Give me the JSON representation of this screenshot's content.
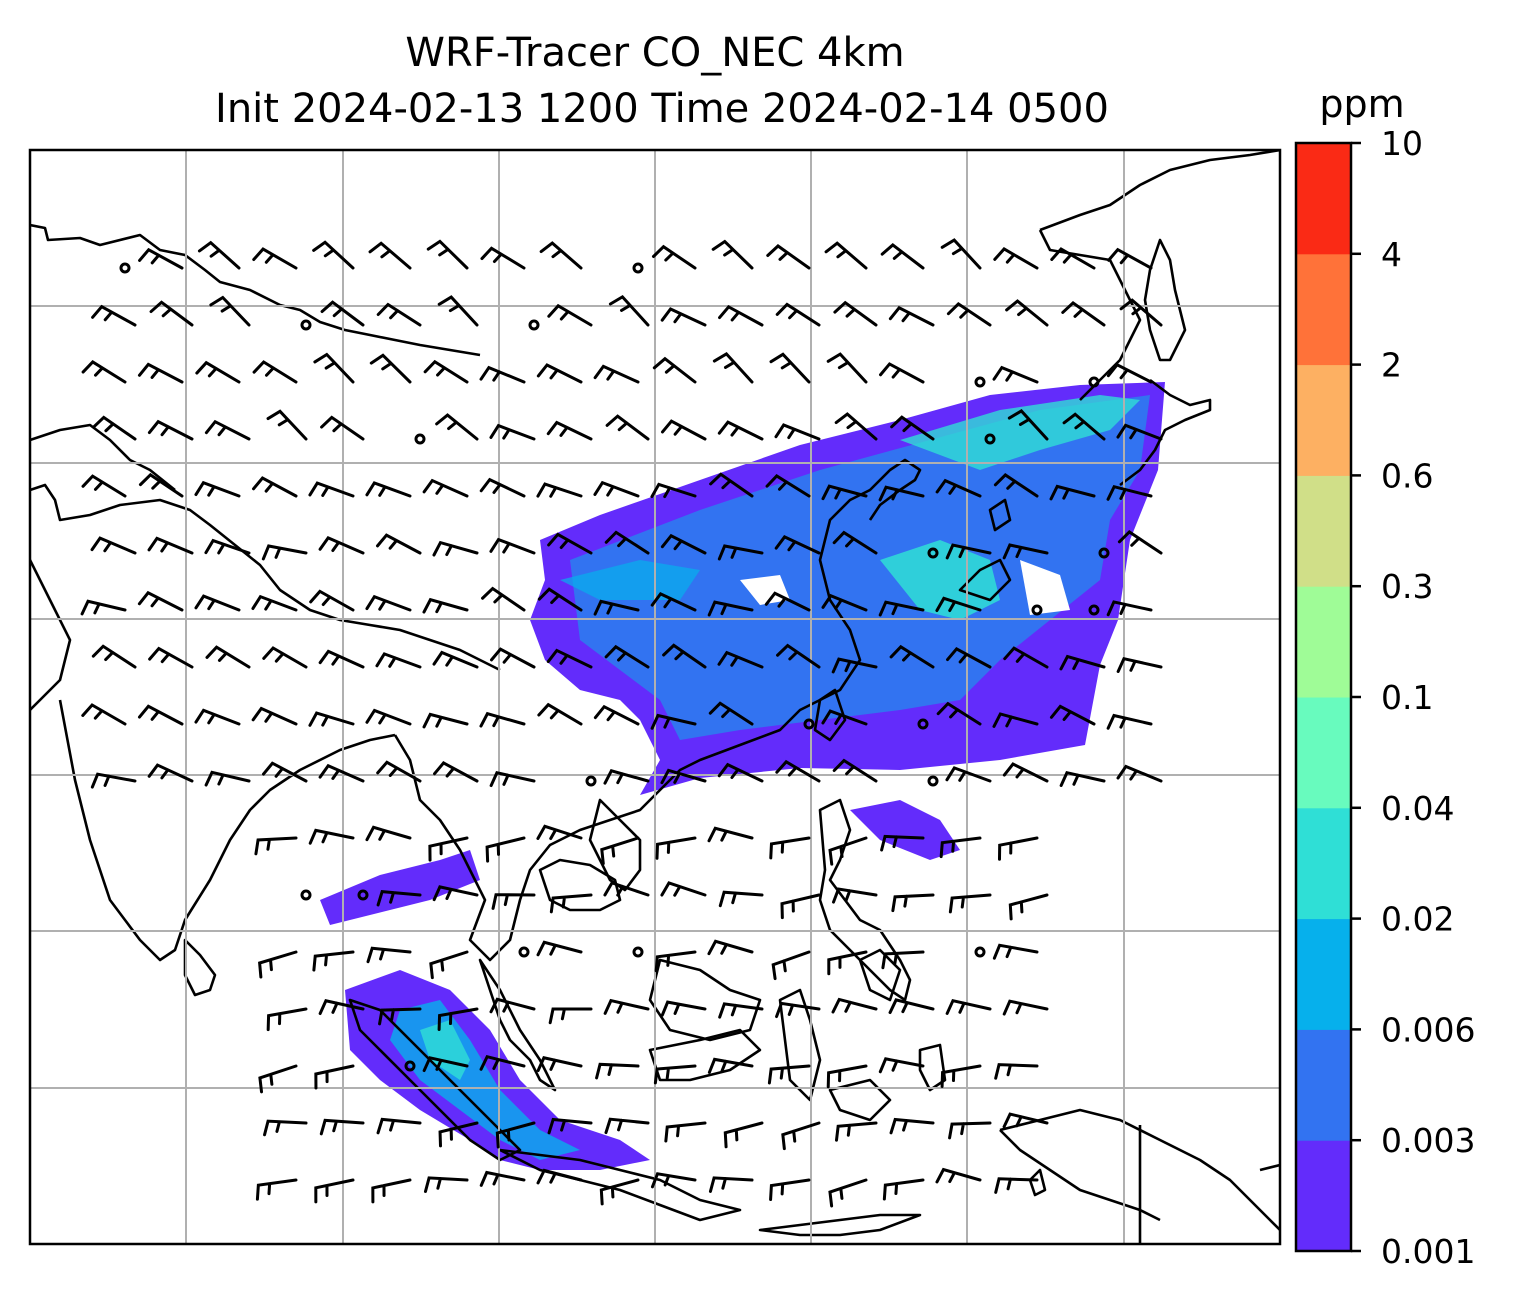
{
  "title": {
    "line1": "WRF-Tracer CO_NEC 4km",
    "line2": "Init 2024-02-13 1200 Time 2024-02-14 0500"
  },
  "colorbar": {
    "unit": "ppm",
    "levels": [
      "0.001",
      "0.003",
      "0.006",
      "0.02",
      "0.04",
      "0.1",
      "0.3",
      "0.6",
      "2",
      "4",
      "10"
    ],
    "colors": [
      "#632cfb",
      "#3273f1",
      "#06b0ec",
      "#2fdfd6",
      "#68fbbe",
      "#9ffc97",
      "#d0df88",
      "#fdb062",
      "#ff7239",
      "#fa2a15"
    ]
  },
  "chart_data": {
    "type": "heatmap",
    "title": "WRF-Tracer CO_NEC 4km / Init 2024-02-13 1200 Time 2024-02-14 0500",
    "variable": "CO_NEC tracer concentration",
    "unit": "ppm",
    "color_levels": [
      0.001,
      0.003,
      0.006,
      0.02,
      0.04,
      0.1,
      0.3,
      0.6,
      2,
      4,
      10
    ],
    "overlays": [
      "coastlines",
      "country borders",
      "wind barbs",
      "lat/lon gridlines"
    ],
    "gridlines": true
  },
  "colors": {
    "frame": "#000000",
    "grid": "#b0b0b0",
    "background": "#ffffff"
  }
}
